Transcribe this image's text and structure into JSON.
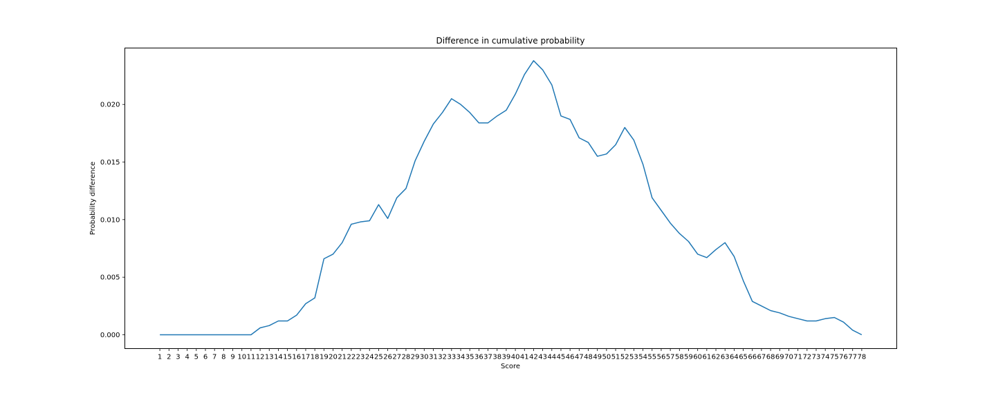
{
  "chart_data": {
    "type": "line",
    "title": "Difference in cumulative probability",
    "xlabel": "Score",
    "ylabel": "Probability difference",
    "grid": false,
    "ylim": [
      -0.0012,
      0.0249
    ],
    "yticks": [
      0.0,
      0.005,
      0.01,
      0.015,
      0.02
    ],
    "ytick_labels": [
      "0.000",
      "0.005",
      "0.010",
      "0.015",
      "0.020"
    ],
    "color": "#1f77b4",
    "x": [
      1,
      2,
      3,
      4,
      5,
      6,
      7,
      8,
      9,
      10,
      11,
      12,
      13,
      14,
      15,
      16,
      17,
      18,
      19,
      20,
      21,
      22,
      23,
      24,
      25,
      26,
      27,
      28,
      29,
      30,
      31,
      32,
      33,
      34,
      35,
      36,
      37,
      38,
      39,
      40,
      41,
      42,
      43,
      44,
      45,
      46,
      47,
      48,
      49,
      50,
      51,
      52,
      53,
      54,
      55,
      56,
      57,
      58,
      59,
      60,
      61,
      62,
      63,
      64,
      65,
      66,
      67,
      68,
      69,
      70,
      71,
      72,
      73,
      74,
      75,
      76,
      77,
      78
    ],
    "series": [
      {
        "values": [
          0.0,
          0.0,
          0.0,
          0.0,
          0.0,
          0.0,
          0.0,
          0.0,
          0.0,
          0.0,
          0.0,
          0.0006,
          0.0008,
          0.0012,
          0.0012,
          0.0017,
          0.0027,
          0.0032,
          0.0066,
          0.007,
          0.008,
          0.0096,
          0.0098,
          0.0099,
          0.0113,
          0.0101,
          0.0119,
          0.0127,
          0.0151,
          0.0168,
          0.0183,
          0.0193,
          0.0205,
          0.02,
          0.0193,
          0.0184,
          0.0184,
          0.019,
          0.0195,
          0.0209,
          0.0226,
          0.0238,
          0.023,
          0.0217,
          0.019,
          0.0187,
          0.0171,
          0.0167,
          0.0155,
          0.0157,
          0.0165,
          0.018,
          0.0169,
          0.0148,
          0.0119,
          0.0108,
          0.0097,
          0.0088,
          0.0081,
          0.007,
          0.0067,
          0.0074,
          0.008,
          0.0068,
          0.0047,
          0.0029,
          0.0025,
          0.0021,
          0.0019,
          0.0016,
          0.0014,
          0.0012,
          0.0012,
          0.0014,
          0.0015,
          0.0011,
          0.0004,
          0.0
        ]
      }
    ]
  }
}
